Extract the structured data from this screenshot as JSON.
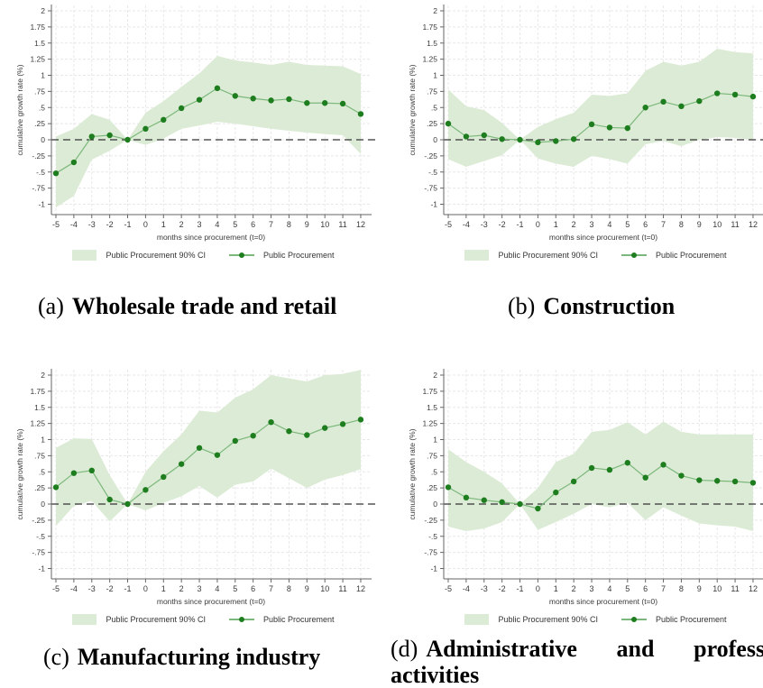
{
  "colors": {
    "ci_band": "#dcebd5",
    "line": "#7cb87c",
    "marker": "#1e7d1e",
    "zero_line": "#333333",
    "axis": "#666666",
    "grid": "#e8e8e8",
    "tick_text": "#3a3a3a"
  },
  "chart_data": [
    {
      "type": "line",
      "caption_prefix": "(a)",
      "caption_title": "Wholesale trade and retail",
      "xlabel": "months since procurement (t=0)",
      "ylabel": "cumulative growth rate (%)",
      "legend_ci": "Public Procurement 90% CI",
      "legend_line": "Public Procurement",
      "x": [
        -5,
        -4,
        -3,
        -2,
        -1,
        0,
        1,
        2,
        3,
        4,
        5,
        6,
        7,
        8,
        9,
        10,
        11,
        12
      ],
      "x_tick_labels": [
        "-5",
        "-4",
        "-3",
        "-2",
        "-1",
        "0",
        "1",
        "2",
        "3",
        "4",
        "5",
        "6",
        "7",
        "8",
        "9",
        "10",
        "11",
        "12"
      ],
      "y_tick_values": [
        2,
        1.75,
        1.5,
        1.25,
        1,
        0.75,
        0.5,
        0.25,
        0,
        -0.25,
        -0.5,
        -0.75,
        -1
      ],
      "y_tick_labels": [
        "2",
        "1.75",
        "1.5",
        "1.25",
        "1",
        ".75",
        ".5",
        ".25",
        "0",
        "-.25",
        "-.5",
        "-.75",
        "-1"
      ],
      "ylim": [
        -1.15,
        2.1
      ],
      "grid": true,
      "zero_reference_line": true,
      "legend_position": "bottom",
      "series": [
        {
          "name": "Public Procurement",
          "values": [
            -0.52,
            -0.35,
            0.05,
            0.07,
            0,
            0.17,
            0.31,
            0.49,
            0.62,
            0.8,
            0.68,
            0.64,
            0.61,
            0.63,
            0.57,
            0.57,
            0.56,
            0.4
          ]
        },
        {
          "name": "Public Procurement 90% CI upper",
          "values": [
            0.05,
            0.17,
            0.4,
            0.31,
            0,
            0.42,
            0.6,
            0.82,
            1.03,
            1.3,
            1.23,
            1.2,
            1.16,
            1.21,
            1.16,
            1.15,
            1.14,
            1.02
          ]
        },
        {
          "name": "Public Procurement 90% CI lower",
          "values": [
            -1.05,
            -0.87,
            -0.31,
            -0.17,
            0,
            -0.08,
            0.02,
            0.17,
            0.22,
            0.28,
            0.25,
            0.21,
            0.17,
            0.14,
            0.11,
            0.09,
            0.07,
            -0.22
          ]
        }
      ]
    },
    {
      "type": "line",
      "caption_prefix": "(b)",
      "caption_title": "Construction",
      "xlabel": "months since procurement (t=0)",
      "ylabel": "cumulative growth rate (%)",
      "legend_ci": "Public Procurement 90% CI",
      "legend_line": "Public Procurement",
      "x": [
        -5,
        -4,
        -3,
        -2,
        -1,
        0,
        1,
        2,
        3,
        4,
        5,
        6,
        7,
        8,
        9,
        10,
        11,
        12
      ],
      "x_tick_labels": [
        "-5",
        "-4",
        "-3",
        "-2",
        "-1",
        "0",
        "1",
        "2",
        "3",
        "4",
        "5",
        "6",
        "7",
        "8",
        "9",
        "10",
        "11",
        "12"
      ],
      "y_tick_values": [
        2,
        1.75,
        1.5,
        1.25,
        1,
        0.75,
        0.5,
        0.25,
        0,
        -0.25,
        -0.5,
        -0.75,
        -1
      ],
      "y_tick_labels": [
        "2",
        "1.75",
        "1.5",
        "1.25",
        "1",
        ".75",
        ".5",
        ".25",
        "0",
        "-.25",
        "-.5",
        "-.75",
        "-1"
      ],
      "ylim": [
        -1.15,
        2.1
      ],
      "grid": true,
      "zero_reference_line": true,
      "legend_position": "bottom",
      "series": [
        {
          "name": "Public Procurement",
          "values": [
            0.25,
            0.05,
            0.07,
            0.01,
            0,
            -0.04,
            -0.02,
            0.01,
            0.24,
            0.19,
            0.18,
            0.5,
            0.59,
            0.52,
            0.6,
            0.72,
            0.7,
            0.67
          ]
        },
        {
          "name": "Public Procurement 90% CI upper",
          "values": [
            0.78,
            0.52,
            0.46,
            0.26,
            0,
            0.2,
            0.32,
            0.42,
            0.7,
            0.68,
            0.72,
            1.07,
            1.21,
            1.15,
            1.21,
            1.41,
            1.36,
            1.34
          ]
        },
        {
          "name": "Public Procurement 90% CI lower",
          "values": [
            -0.3,
            -0.42,
            -0.33,
            -0.24,
            0,
            -0.29,
            -0.37,
            -0.42,
            -0.25,
            -0.3,
            -0.37,
            -0.07,
            -0.02,
            -0.1,
            0.0,
            0.04,
            0.03,
            0.0
          ]
        }
      ]
    },
    {
      "type": "line",
      "caption_prefix": "(c)",
      "caption_title": "Manufacturing industry",
      "xlabel": "months since procurement (t=0)",
      "ylabel": "cumulative growth rate (%)",
      "legend_ci": "Public Procurement 90% CI",
      "legend_line": "Public Procurement",
      "x": [
        -5,
        -4,
        -3,
        -2,
        -1,
        0,
        1,
        2,
        3,
        4,
        5,
        6,
        7,
        8,
        9,
        10,
        11,
        12
      ],
      "x_tick_labels": [
        "-5",
        "-4",
        "-3",
        "-2",
        "-1",
        "0",
        "1",
        "2",
        "3",
        "4",
        "5",
        "6",
        "7",
        "8",
        "9",
        "10",
        "11",
        "12"
      ],
      "y_tick_values": [
        2,
        1.75,
        1.5,
        1.25,
        1,
        0.75,
        0.5,
        0.25,
        0,
        -0.25,
        -0.5,
        -0.75,
        -1
      ],
      "y_tick_labels": [
        "2",
        "1.75",
        "1.5",
        "1.25",
        "1",
        ".75",
        ".5",
        ".25",
        "0",
        "-.25",
        "-.5",
        "-.75",
        "-1"
      ],
      "ylim": [
        -1.15,
        2.1
      ],
      "grid": true,
      "zero_reference_line": true,
      "legend_position": "bottom",
      "series": [
        {
          "name": "Public Procurement",
          "values": [
            0.26,
            0.48,
            0.52,
            0.07,
            0,
            0.22,
            0.42,
            0.62,
            0.87,
            0.76,
            0.98,
            1.06,
            1.27,
            1.13,
            1.07,
            1.18,
            1.24,
            1.31
          ]
        },
        {
          "name": "Public Procurement 90% CI upper",
          "values": [
            0.87,
            1.02,
            1.01,
            0.45,
            0,
            0.5,
            0.82,
            1.08,
            1.45,
            1.42,
            1.65,
            1.78,
            2.0,
            1.95,
            1.9,
            2.0,
            2.02,
            2.08
          ]
        },
        {
          "name": "Public Procurement 90% CI lower",
          "values": [
            -0.34,
            -0.03,
            0.05,
            -0.27,
            0,
            -0.1,
            0.02,
            0.12,
            0.28,
            0.1,
            0.3,
            0.35,
            0.55,
            0.4,
            0.25,
            0.38,
            0.45,
            0.54
          ]
        }
      ]
    },
    {
      "type": "line",
      "caption_prefix": "(d)",
      "caption_title": "Administrative and professional activities",
      "xlabel": "months since procurement (t=0)",
      "ylabel": "cumulative growth rate (%)",
      "legend_ci": "Public Procurement 90% CI",
      "legend_line": "Public Procurement",
      "x": [
        -5,
        -4,
        -3,
        -2,
        -1,
        0,
        1,
        2,
        3,
        4,
        5,
        6,
        7,
        8,
        9,
        10,
        11,
        12
      ],
      "x_tick_labels": [
        "-5",
        "-4",
        "-3",
        "-2",
        "-1",
        "0",
        "1",
        "2",
        "3",
        "4",
        "5",
        "6",
        "7",
        "8",
        "9",
        "10",
        "11",
        "12"
      ],
      "y_tick_values": [
        2,
        1.75,
        1.5,
        1.25,
        1,
        0.75,
        0.5,
        0.25,
        0,
        -0.25,
        -0.5,
        -0.75,
        -1
      ],
      "y_tick_labels": [
        "2",
        "1.75",
        "1.5",
        "1.25",
        "1",
        ".75",
        ".5",
        ".25",
        "0",
        "-.25",
        "-.5",
        "-.75",
        "-1"
      ],
      "ylim": [
        -1.15,
        2.1
      ],
      "grid": true,
      "zero_reference_line": true,
      "legend_position": "bottom",
      "series": [
        {
          "name": "Public Procurement",
          "values": [
            0.26,
            0.1,
            0.06,
            0.03,
            0,
            -0.07,
            0.18,
            0.35,
            0.56,
            0.53,
            0.64,
            0.41,
            0.61,
            0.44,
            0.37,
            0.36,
            0.35,
            0.33
          ]
        },
        {
          "name": "Public Procurement 90% CI upper",
          "values": [
            0.85,
            0.65,
            0.5,
            0.32,
            0,
            0.25,
            0.65,
            0.78,
            1.12,
            1.15,
            1.27,
            1.08,
            1.28,
            1.12,
            1.08,
            1.08,
            1.08,
            1.08
          ]
        },
        {
          "name": "Public Procurement 90% CI lower",
          "values": [
            -0.35,
            -0.42,
            -0.38,
            -0.28,
            0,
            -0.4,
            -0.28,
            -0.15,
            0.0,
            -0.05,
            0.02,
            -0.25,
            -0.05,
            -0.18,
            -0.3,
            -0.33,
            -0.35,
            -0.42
          ]
        }
      ]
    }
  ]
}
